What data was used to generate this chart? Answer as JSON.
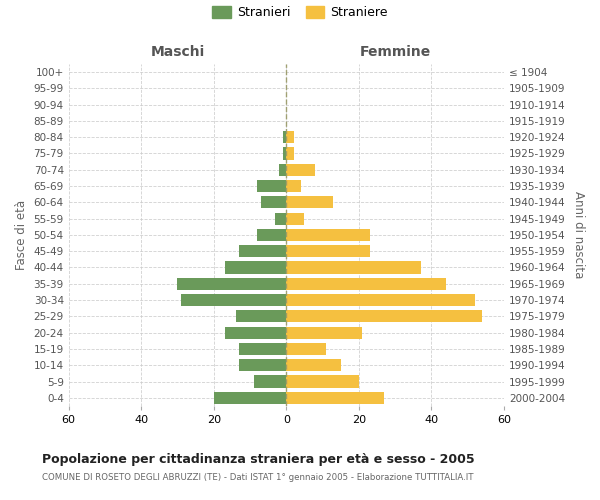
{
  "age_groups": [
    "100+",
    "95-99",
    "90-94",
    "85-89",
    "80-84",
    "75-79",
    "70-74",
    "65-69",
    "60-64",
    "55-59",
    "50-54",
    "45-49",
    "40-44",
    "35-39",
    "30-34",
    "25-29",
    "20-24",
    "15-19",
    "10-14",
    "5-9",
    "0-4"
  ],
  "birth_years": [
    "≤ 1904",
    "1905-1909",
    "1910-1914",
    "1915-1919",
    "1920-1924",
    "1925-1929",
    "1930-1934",
    "1935-1939",
    "1940-1944",
    "1945-1949",
    "1950-1954",
    "1955-1959",
    "1960-1964",
    "1965-1969",
    "1970-1974",
    "1975-1979",
    "1980-1984",
    "1985-1989",
    "1990-1994",
    "1995-1999",
    "2000-2004"
  ],
  "maschi": [
    0,
    0,
    0,
    0,
    1,
    1,
    2,
    8,
    7,
    3,
    8,
    13,
    17,
    30,
    29,
    14,
    17,
    13,
    13,
    9,
    20
  ],
  "femmine": [
    0,
    0,
    0,
    0,
    2,
    2,
    8,
    4,
    13,
    5,
    23,
    23,
    37,
    44,
    52,
    54,
    21,
    11,
    15,
    20,
    27
  ],
  "color_maschi": "#6a9a5a",
  "color_femmine": "#f5c040",
  "title": "Popolazione per cittadinanza straniera per età e sesso - 2005",
  "subtitle": "COMUNE DI ROSETO DEGLI ABRUZZI (TE) - Dati ISTAT 1° gennaio 2005 - Elaborazione TUTTITALIA.IT",
  "xlabel_left": "Maschi",
  "xlabel_right": "Femmine",
  "ylabel_left": "Fasce di età",
  "ylabel_right": "Anni di nascita",
  "legend_maschi": "Stranieri",
  "legend_femmine": "Straniere",
  "xlim": 60,
  "background_color": "#ffffff",
  "grid_color": "#cccccc",
  "bar_height": 0.75,
  "dashed_line_color": "#999966"
}
